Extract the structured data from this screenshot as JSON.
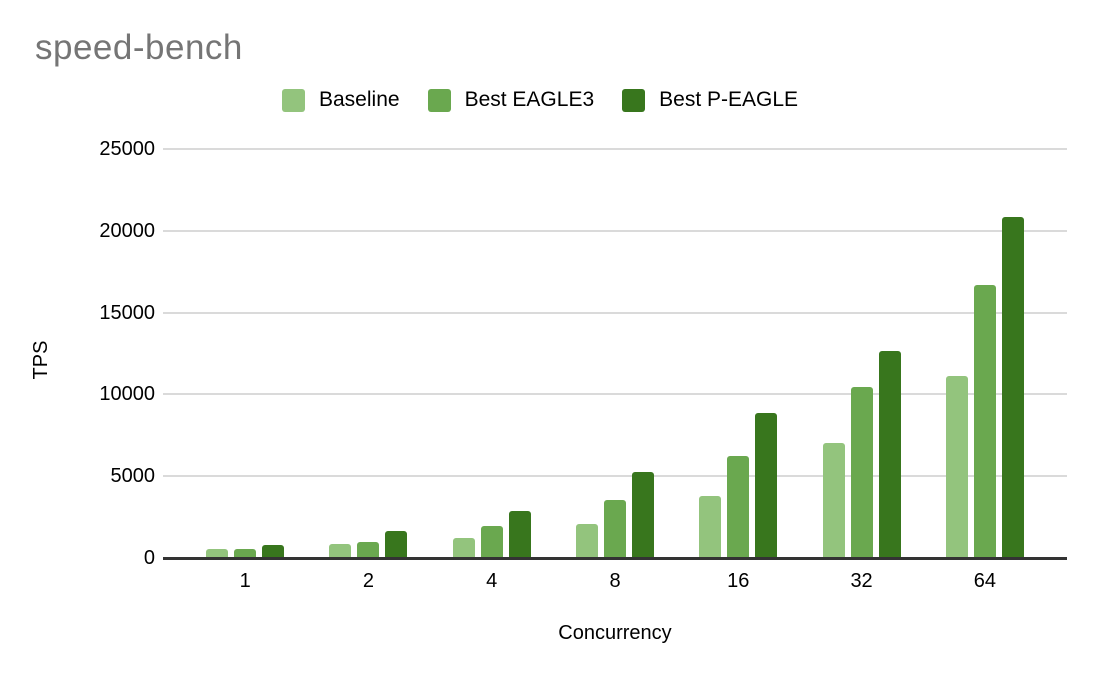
{
  "chart_data": {
    "type": "bar",
    "title": "speed-bench",
    "title_color": "#757575",
    "xlabel": "Concurrency",
    "ylabel": "TPS",
    "categories": [
      "1",
      "2",
      "4",
      "8",
      "16",
      "32",
      "64"
    ],
    "series": [
      {
        "name": "Baseline",
        "color": "#93c47d",
        "values": [
          550,
          830,
          1230,
          2100,
          3800,
          7060,
          11100
        ]
      },
      {
        "name": "Best EAGLE3",
        "color": "#6aa84f",
        "values": [
          530,
          990,
          1940,
          3520,
          6250,
          10460,
          16660
        ]
      },
      {
        "name": "Best P-EAGLE",
        "color": "#38761d",
        "values": [
          820,
          1640,
          2900,
          5250,
          8870,
          12650,
          20820
        ]
      }
    ],
    "ylim": [
      0,
      25000
    ],
    "yticks": [
      0,
      5000,
      10000,
      15000,
      20000,
      25000
    ],
    "grid": true,
    "legend_position": "top",
    "gridline_color": "#dadada",
    "axis_color": "#333333",
    "tick_label_color": "#000000"
  }
}
